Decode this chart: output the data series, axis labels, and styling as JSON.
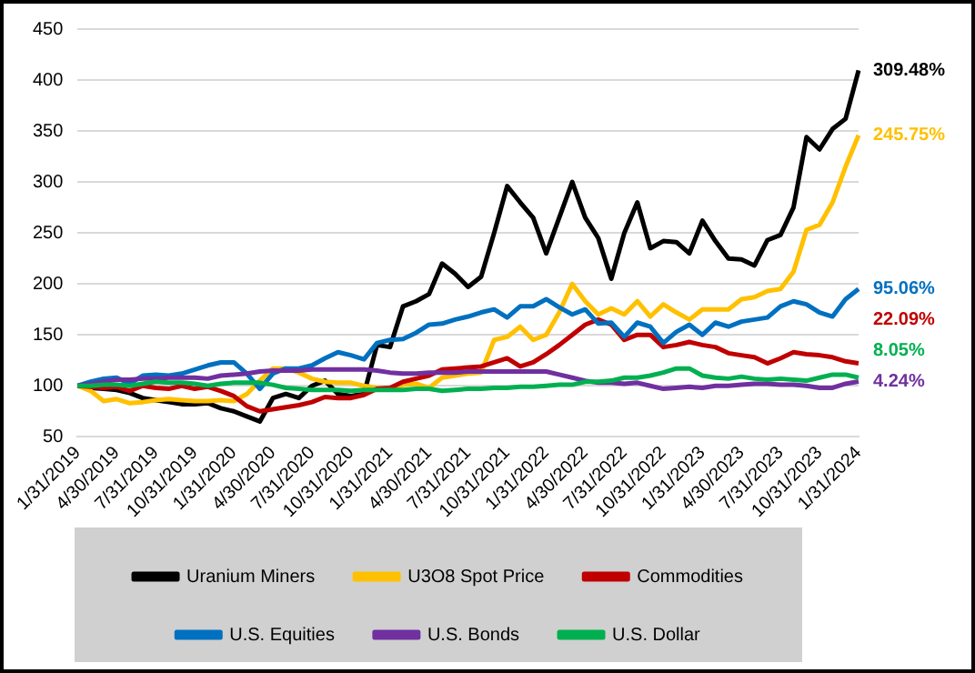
{
  "chart_data": {
    "type": "line",
    "categories": [
      "1/31/2019",
      null,
      null,
      "4/30/2019",
      null,
      null,
      "7/31/2019",
      null,
      null,
      "10/31/2019",
      null,
      null,
      "1/31/2020",
      null,
      null,
      "4/30/2020",
      null,
      null,
      "7/31/2020",
      null,
      null,
      "10/31/2020",
      null,
      null,
      "1/31/2021",
      null,
      null,
      "4/30/2021",
      null,
      null,
      "7/31/2021",
      null,
      null,
      "10/31/2021",
      null,
      null,
      "1/31/2022",
      null,
      null,
      "4/30/2022",
      null,
      null,
      "7/31/2022",
      null,
      null,
      "10/31/2022",
      null,
      null,
      "1/31/2023",
      null,
      null,
      "4/30/2023",
      null,
      null,
      "7/31/2023",
      null,
      null,
      "10/31/2023",
      null,
      null,
      "1/31/2024"
    ],
    "series": [
      {
        "name": "Uranium Miners",
        "color": "#000000",
        "values": [
          100,
          98,
          97,
          96,
          93,
          88,
          86,
          84,
          82,
          82,
          83,
          78,
          75,
          70,
          65,
          88,
          92,
          88,
          100,
          105,
          92,
          90,
          92,
          140,
          138,
          178,
          183,
          190,
          220,
          210,
          197,
          207,
          250,
          296,
          280,
          265,
          230,
          265,
          300,
          265,
          245,
          205,
          250,
          280,
          235,
          242,
          241,
          230,
          262,
          242,
          225,
          224,
          218,
          243,
          248,
          275,
          344,
          332,
          352,
          362,
          409.48
        ]
      },
      {
        "name": "U3O8 Spot Price",
        "color": "#ffc000",
        "values": [
          100,
          95,
          85,
          87,
          83,
          84,
          86,
          87,
          86,
          85,
          85,
          86,
          85,
          92,
          105,
          117,
          117,
          113,
          107,
          104,
          103,
          103,
          100,
          98,
          97,
          101,
          102,
          98,
          108,
          110,
          112,
          113,
          145,
          148,
          158,
          145,
          150,
          172,
          200,
          183,
          170,
          176,
          170,
          183,
          168,
          180,
          172,
          165,
          175,
          175,
          175,
          185,
          187,
          193,
          195,
          212,
          253,
          258,
          280,
          315,
          345.75
        ]
      },
      {
        "name": "Commodities",
        "color": "#c00000",
        "values": [
          100,
          99,
          98,
          99,
          95,
          100,
          98,
          97,
          100,
          97,
          99,
          95,
          90,
          80,
          75,
          77,
          79,
          81,
          84,
          89,
          88,
          88,
          91,
          97,
          98,
          104,
          107,
          110,
          116,
          117,
          118,
          119,
          123,
          127,
          119,
          123,
          131,
          140,
          150,
          160,
          165,
          160,
          145,
          150,
          150,
          138,
          140,
          143,
          140,
          138,
          132,
          130,
          128,
          122,
          127,
          133,
          131,
          130,
          128,
          124,
          122.09
        ]
      },
      {
        "name": "U.S. Equities",
        "color": "#0070c0",
        "values": [
          100,
          104,
          107,
          108,
          102,
          110,
          111,
          110,
          112,
          116,
          120,
          123,
          123,
          112,
          97,
          112,
          117,
          117,
          120,
          127,
          133,
          130,
          126,
          142,
          145,
          146,
          152,
          160,
          161,
          165,
          168,
          172,
          175,
          167,
          178,
          178,
          185,
          177,
          170,
          175,
          161,
          162,
          148,
          162,
          158,
          142,
          153,
          160,
          150,
          162,
          158,
          163,
          165,
          167,
          178,
          183,
          180,
          172,
          168,
          185,
          195.06
        ]
      },
      {
        "name": "U.S. Bonds",
        "color": "#7030a0",
        "values": [
          100,
          102,
          104,
          106,
          106,
          107,
          107,
          108,
          108,
          108,
          107,
          110,
          111,
          112,
          114,
          115,
          115,
          115,
          116,
          116,
          116,
          116,
          116,
          115,
          113,
          112,
          112,
          113,
          113,
          113,
          114,
          114,
          114,
          114,
          114,
          114,
          114,
          111,
          108,
          105,
          103,
          103,
          102,
          103,
          100,
          97,
          98,
          99,
          98,
          100,
          100,
          101,
          102,
          102,
          101,
          101,
          100,
          98,
          98,
          102,
          104.24
        ]
      },
      {
        "name": "U.S. Dollar",
        "color": "#00b050",
        "values": [
          100,
          100,
          101,
          101,
          100,
          102,
          104,
          103,
          103,
          102,
          100,
          102,
          103,
          103,
          103,
          101,
          98,
          97,
          96,
          96,
          96,
          95,
          96,
          96,
          96,
          96,
          97,
          97,
          95,
          96,
          97,
          97,
          98,
          98,
          99,
          99,
          100,
          101,
          101,
          104,
          104,
          105,
          108,
          108,
          110,
          113,
          117,
          117,
          110,
          108,
          107,
          109,
          107,
          106,
          107,
          106,
          105,
          108,
          111,
          111,
          108.05
        ]
      }
    ],
    "ylim": [
      50,
      450
    ],
    "yticks": [
      50,
      100,
      150,
      200,
      250,
      300,
      350,
      400,
      450
    ],
    "grid": "y",
    "legend": "bottom",
    "marker": "none",
    "line_style": "solid",
    "annotations": [
      {
        "text": "309.48%",
        "x": "1/31/2024",
        "y": 409.48
      },
      {
        "text": "245.75%",
        "x": "1/31/2024",
        "y": 345.75
      },
      {
        "text": "95.06%",
        "x": "1/31/2024",
        "y": 195.06
      },
      {
        "text": "22.09%",
        "x": "1/31/2024",
        "y": 122.09
      },
      {
        "text": "8.05%",
        "x": "1/31/2024",
        "y": 108.05
      },
      {
        "text": "4.24%",
        "x": "1/31/2024",
        "y": 104.24
      }
    ]
  }
}
